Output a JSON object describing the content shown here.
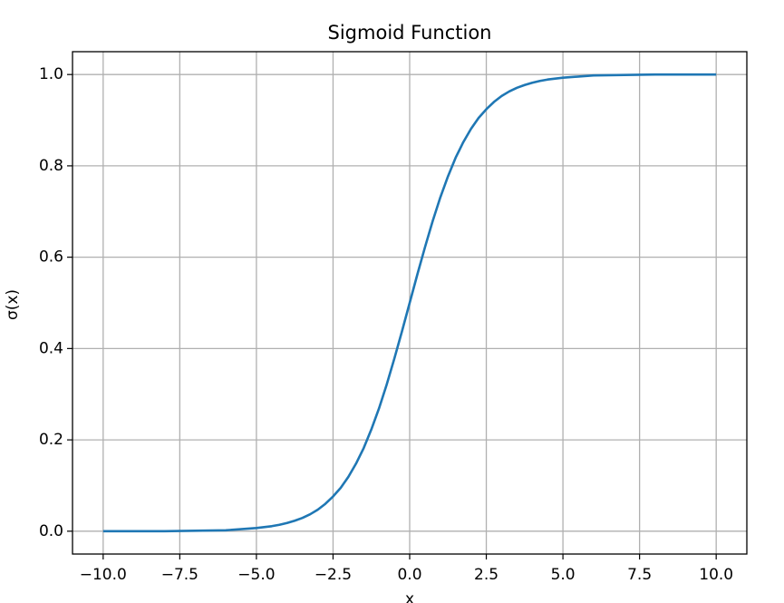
{
  "chart_data": {
    "type": "line",
    "title": "Sigmoid Function",
    "x_label": "x",
    "y_label": "σ(x)",
    "x": [
      -10,
      -9,
      -8,
      -7,
      -6,
      -5,
      -4.75,
      -4.5,
      -4.25,
      -4,
      -3.75,
      -3.5,
      -3.25,
      -3,
      -2.75,
      -2.5,
      -2.25,
      -2,
      -1.75,
      -1.5,
      -1.25,
      -1,
      -0.75,
      -0.5,
      -0.25,
      0,
      0.25,
      0.5,
      0.75,
      1,
      1.25,
      1.5,
      1.75,
      2,
      2.25,
      2.5,
      2.75,
      3,
      3.25,
      3.5,
      3.75,
      4,
      4.25,
      4.5,
      4.75,
      5,
      6,
      7,
      8,
      9,
      10
    ],
    "values": [
      0.0,
      0.0,
      0.0,
      0.001,
      0.002,
      0.007,
      0.009,
      0.011,
      0.014,
      0.018,
      0.023,
      0.029,
      0.037,
      0.047,
      0.06,
      0.076,
      0.095,
      0.119,
      0.148,
      0.182,
      0.223,
      0.269,
      0.321,
      0.378,
      0.438,
      0.5,
      0.562,
      0.622,
      0.679,
      0.731,
      0.777,
      0.818,
      0.852,
      0.881,
      0.905,
      0.924,
      0.94,
      0.953,
      0.963,
      0.971,
      0.977,
      0.982,
      0.986,
      0.989,
      0.991,
      0.993,
      0.998,
      0.999,
      1.0,
      1.0,
      1.0
    ],
    "color": "#1f77b4",
    "xlim": [
      -11,
      11
    ],
    "xticks": [
      {
        "value": -10,
        "label": "−10.0"
      },
      {
        "value": -7.5,
        "label": "−7.5"
      },
      {
        "value": -5,
        "label": "−5.0"
      },
      {
        "value": -2.5,
        "label": "−2.5"
      },
      {
        "value": 0,
        "label": "0.0"
      },
      {
        "value": 2.5,
        "label": "2.5"
      },
      {
        "value": 5,
        "label": "5.0"
      },
      {
        "value": 7.5,
        "label": "7.5"
      },
      {
        "value": 10,
        "label": "10.0"
      }
    ],
    "ylim": [
      -0.05,
      1.05
    ],
    "yticks": [
      {
        "value": 0,
        "label": "0.0"
      },
      {
        "value": 0.2,
        "label": "0.2"
      },
      {
        "value": 0.4,
        "label": "0.4"
      },
      {
        "value": 0.6,
        "label": "0.6"
      },
      {
        "value": 0.8,
        "label": "0.8"
      },
      {
        "value": 1,
        "label": "1.0"
      }
    ],
    "grid": true
  }
}
